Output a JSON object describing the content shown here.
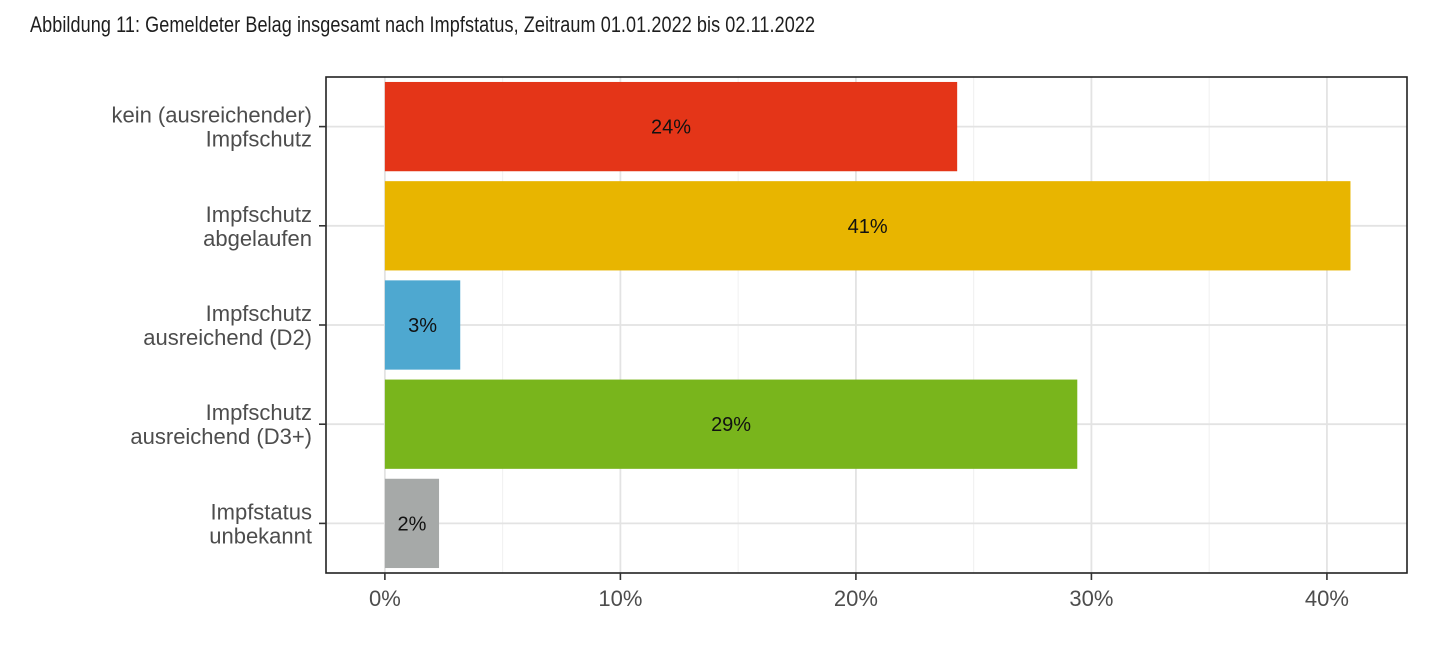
{
  "figure": {
    "title": "Abbildung 11: Gemeldeter Belag insgesamt nach Impfstatus, Zeitraum 01.01.2022 bis 02.11.2022"
  },
  "chart_data": {
    "type": "bar",
    "orientation": "horizontal",
    "title": "Abbildung 11: Gemeldeter Belag insgesamt nach Impfstatus, Zeitraum 01.01.2022 bis 02.11.2022",
    "xlabel": "",
    "ylabel": "",
    "xlim": [
      -2.5,
      43.4
    ],
    "x_ticks": [
      0,
      10,
      20,
      30,
      40
    ],
    "x_tick_labels": [
      "0%",
      "10%",
      "20%",
      "30%",
      "40%"
    ],
    "grid": true,
    "legend": "none",
    "categories": [
      [
        "kein (ausreichender)",
        "Impfschutz"
      ],
      [
        "Impfschutz",
        "abgelaufen"
      ],
      [
        "Impfschutz",
        "ausreichend (D2)"
      ],
      [
        "Impfschutz",
        "ausreichend (D3+)"
      ],
      [
        "Impfstatus",
        "unbekannt"
      ]
    ],
    "values": [
      24.3,
      41.0,
      3.2,
      29.4,
      2.3
    ],
    "data_labels": [
      "24%",
      "41%",
      "3%",
      "29%",
      "2%"
    ],
    "colors": [
      "#e43518",
      "#e8b500",
      "#4ea8d0",
      "#79b51c",
      "#a6a9a8"
    ]
  }
}
